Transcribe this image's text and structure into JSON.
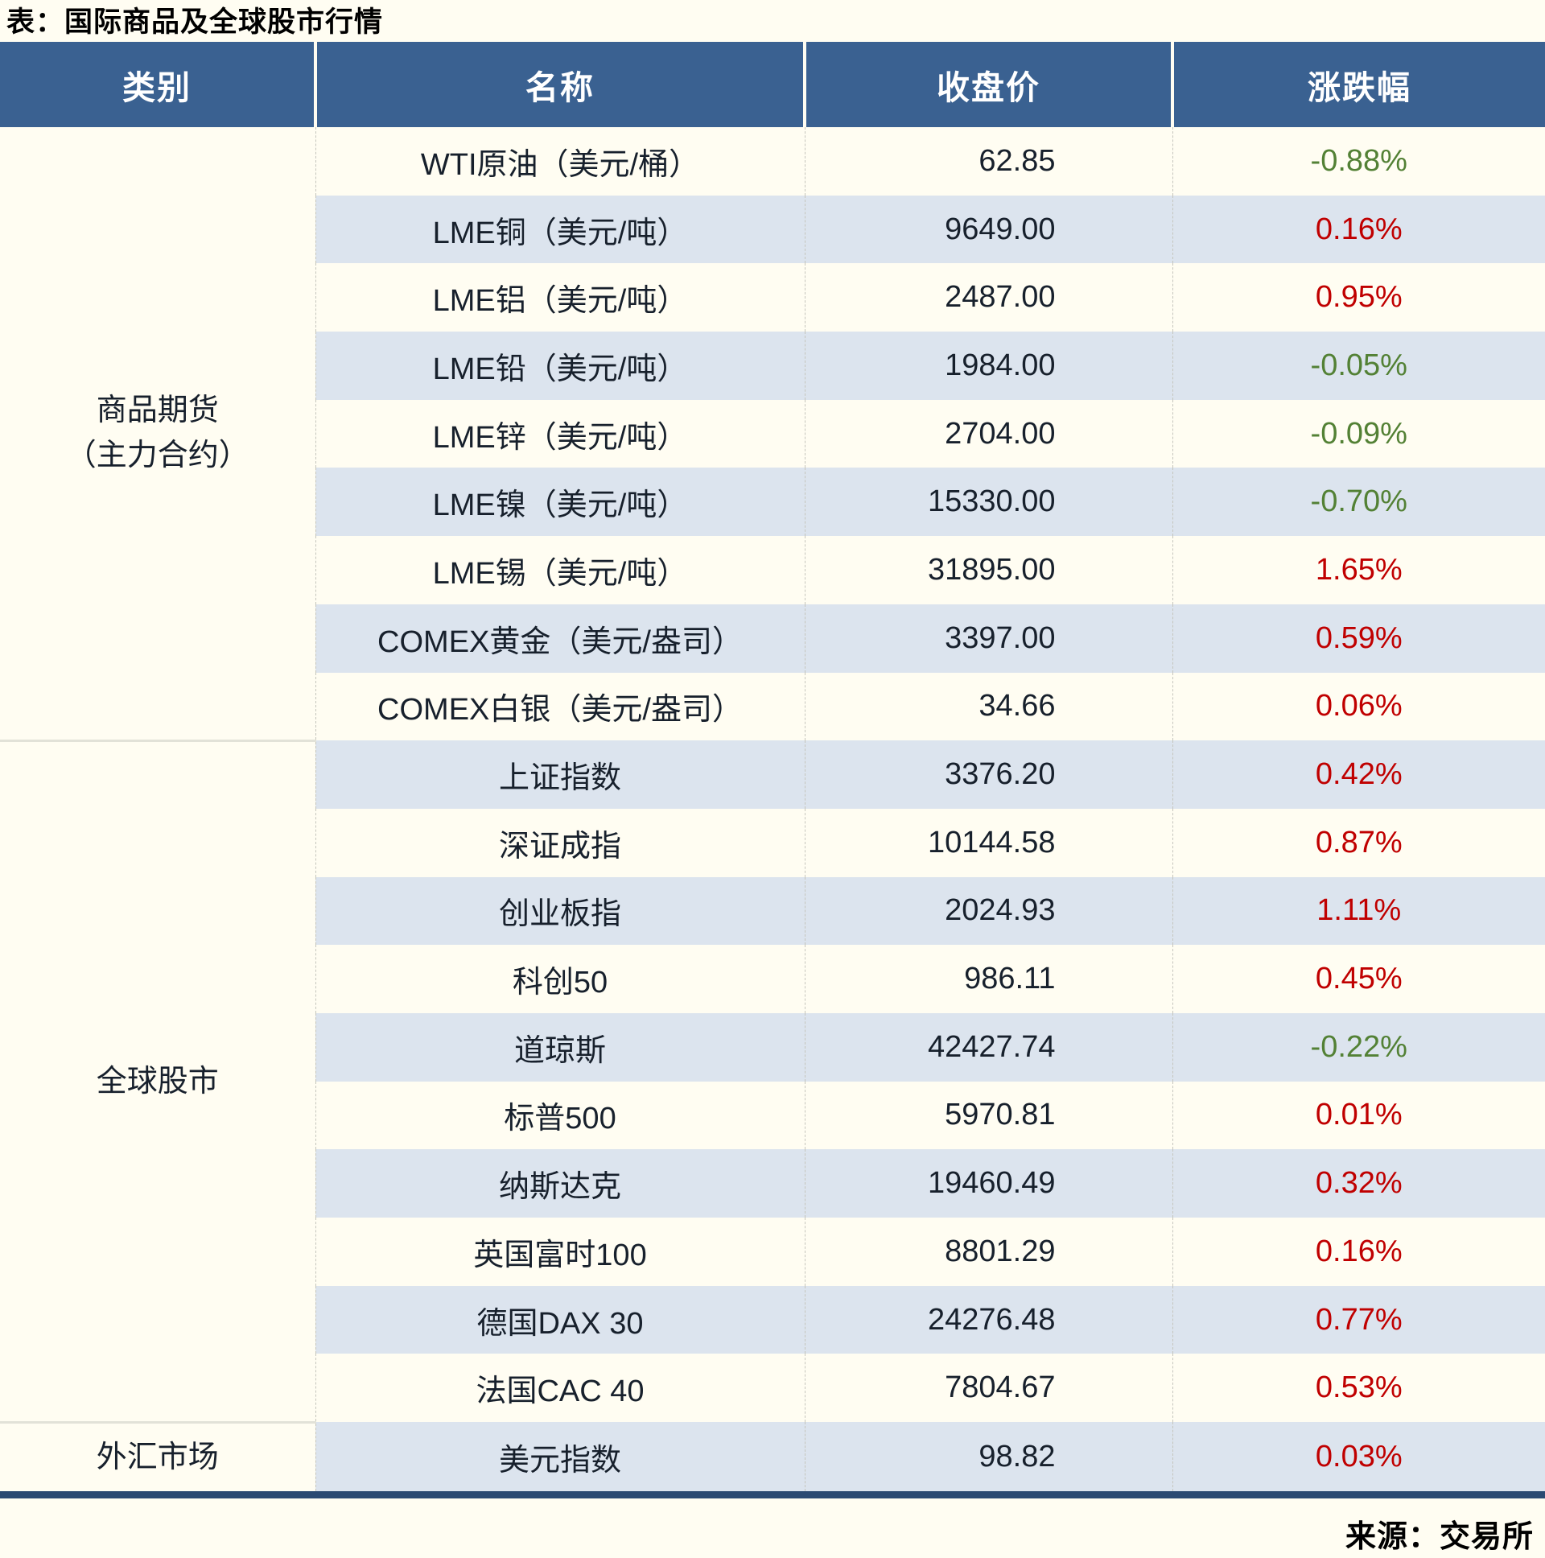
{
  "colors": {
    "header_bg": "#3a6191",
    "stripe": "#dce4ee",
    "page_background": "#fffdf2",
    "up_red": "#c00000",
    "down_green": "#538135",
    "bottom_border": "#2b4a72"
  },
  "chart_data": {
    "type": "table",
    "title": "表：国际商品及全球股市行情",
    "source": "来源：交易所",
    "columns": [
      "类别",
      "名称",
      "收盘价",
      "涨跌幅"
    ],
    "sections": [
      {
        "category": "商品期货（主力合约）",
        "category_lines": [
          "商品期货",
          "（主力合约）"
        ],
        "rows": [
          {
            "name": "WTI原油（美元/桶）",
            "close": "62.85",
            "change": "-0.88%",
            "direction": "down"
          },
          {
            "name": "LME铜（美元/吨）",
            "close": "9649.00",
            "change": "0.16%",
            "direction": "up"
          },
          {
            "name": "LME铝（美元/吨）",
            "close": "2487.00",
            "change": "0.95%",
            "direction": "up"
          },
          {
            "name": "LME铅（美元/吨）",
            "close": "1984.00",
            "change": "-0.05%",
            "direction": "down"
          },
          {
            "name": "LME锌（美元/吨）",
            "close": "2704.00",
            "change": "-0.09%",
            "direction": "down"
          },
          {
            "name": "LME镍（美元/吨）",
            "close": "15330.00",
            "change": "-0.70%",
            "direction": "down"
          },
          {
            "name": "LME锡（美元/吨）",
            "close": "31895.00",
            "change": "1.65%",
            "direction": "up"
          },
          {
            "name": "COMEX黄金（美元/盎司）",
            "close": "3397.00",
            "change": "0.59%",
            "direction": "up"
          },
          {
            "name": "COMEX白银（美元/盎司）",
            "close": "34.66",
            "change": "0.06%",
            "direction": "up"
          }
        ]
      },
      {
        "category": "全球股市",
        "category_lines": [
          "全球股市"
        ],
        "rows": [
          {
            "name": "上证指数",
            "close": "3376.20",
            "change": "0.42%",
            "direction": "up"
          },
          {
            "name": "深证成指",
            "close": "10144.58",
            "change": "0.87%",
            "direction": "up"
          },
          {
            "name": "创业板指",
            "close": "2024.93",
            "change": "1.11%",
            "direction": "up"
          },
          {
            "name": "科创50",
            "close": "986.11",
            "change": "0.45%",
            "direction": "up"
          },
          {
            "name": "道琼斯",
            "close": "42427.74",
            "change": "-0.22%",
            "direction": "down"
          },
          {
            "name": "标普500",
            "close": "5970.81",
            "change": "0.01%",
            "direction": "up"
          },
          {
            "name": "纳斯达克",
            "close": "19460.49",
            "change": "0.32%",
            "direction": "up"
          },
          {
            "name": "英国富时100",
            "close": "8801.29",
            "change": "0.16%",
            "direction": "up"
          },
          {
            "name": "德国DAX 30",
            "close": "24276.48",
            "change": "0.77%",
            "direction": "up"
          },
          {
            "name": "法国CAC 40",
            "close": "7804.67",
            "change": "0.53%",
            "direction": "up"
          }
        ]
      },
      {
        "category": "外汇市场",
        "category_lines": [
          "外汇市场"
        ],
        "rows": [
          {
            "name": "美元指数",
            "close": "98.82",
            "change": "0.03%",
            "direction": "up"
          }
        ]
      }
    ]
  }
}
